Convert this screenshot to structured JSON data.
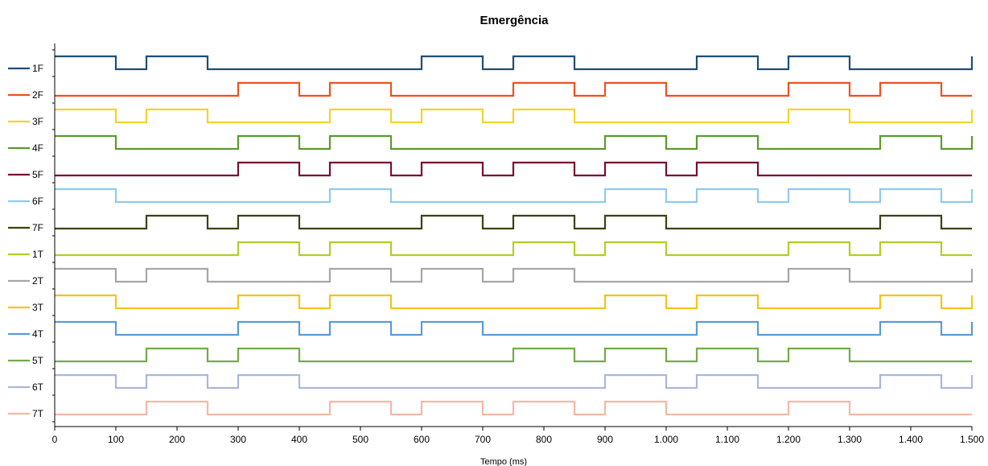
{
  "chart_data": {
    "type": "line",
    "title": "Emergência",
    "xlabel": "Tempo (ms)",
    "ylabel": "",
    "xlim": [
      0,
      1500
    ],
    "x_ticks": [
      0,
      100,
      200,
      300,
      400,
      500,
      600,
      700,
      800,
      900,
      1000,
      1100,
      1200,
      1300,
      1400,
      1500
    ],
    "x_tick_labels": [
      "0",
      "100",
      "200",
      "300",
      "400",
      "500",
      "600",
      "700",
      "800",
      "900",
      "1.000",
      "1.100",
      "1.200",
      "1.300",
      "1.400",
      "1.500"
    ],
    "grid": false,
    "legend_position": "left",
    "series": [
      {
        "name": "1F",
        "color": "#1F4E79",
        "x": [
          0,
          100,
          150,
          250,
          600,
          700,
          750,
          850,
          1050,
          1150,
          1200,
          1300,
          1500
        ],
        "values": [
          1,
          0,
          1,
          0,
          1,
          0,
          1,
          0,
          1,
          0,
          1,
          0,
          1
        ]
      },
      {
        "name": "2F",
        "color": "#F0501E",
        "x": [
          0,
          300,
          400,
          450,
          550,
          750,
          850,
          900,
          1000,
          1200,
          1300,
          1350,
          1450,
          1500
        ],
        "values": [
          0,
          1,
          0,
          1,
          0,
          1,
          0,
          1,
          0,
          1,
          0,
          1,
          0,
          0
        ]
      },
      {
        "name": "3F",
        "color": "#F5D327",
        "x": [
          0,
          100,
          150,
          250,
          450,
          550,
          600,
          700,
          750,
          850,
          1200,
          1300,
          1500
        ],
        "values": [
          1,
          0,
          1,
          0,
          1,
          0,
          1,
          0,
          1,
          0,
          1,
          0,
          1
        ]
      },
      {
        "name": "4F",
        "color": "#5A9C2A",
        "x": [
          0,
          100,
          300,
          400,
          450,
          550,
          900,
          1000,
          1050,
          1150,
          1350,
          1450,
          1500
        ],
        "values": [
          1,
          0,
          1,
          0,
          1,
          0,
          1,
          0,
          1,
          0,
          1,
          0,
          1
        ]
      },
      {
        "name": "5F",
        "color": "#7A0C32",
        "x": [
          0,
          300,
          400,
          450,
          550,
          600,
          700,
          750,
          850,
          900,
          1000,
          1050,
          1150,
          1500
        ],
        "values": [
          0,
          1,
          0,
          1,
          0,
          1,
          0,
          1,
          0,
          1,
          0,
          1,
          0,
          0
        ]
      },
      {
        "name": "6F",
        "color": "#8DCBF0",
        "x": [
          0,
          100,
          450,
          550,
          900,
          1000,
          1050,
          1150,
          1200,
          1300,
          1350,
          1450,
          1500
        ],
        "values": [
          1,
          0,
          1,
          0,
          1,
          0,
          1,
          0,
          1,
          0,
          1,
          0,
          1
        ]
      },
      {
        "name": "7F",
        "color": "#3B4311",
        "x": [
          0,
          150,
          250,
          300,
          400,
          600,
          700,
          750,
          850,
          900,
          1000,
          1350,
          1450,
          1500
        ],
        "values": [
          0,
          1,
          0,
          1,
          0,
          1,
          0,
          1,
          0,
          1,
          0,
          1,
          0,
          0
        ]
      },
      {
        "name": "1T",
        "color": "#B5CC26",
        "x": [
          0,
          300,
          400,
          450,
          550,
          750,
          850,
          900,
          1000,
          1200,
          1300,
          1350,
          1450,
          1500
        ],
        "values": [
          0,
          1,
          0,
          1,
          0,
          1,
          0,
          1,
          0,
          1,
          0,
          1,
          0,
          0
        ]
      },
      {
        "name": "2T",
        "color": "#A6A6A6",
        "x": [
          0,
          100,
          150,
          250,
          450,
          550,
          600,
          700,
          750,
          850,
          1200,
          1300,
          1500
        ],
        "values": [
          1,
          0,
          1,
          0,
          1,
          0,
          1,
          0,
          1,
          0,
          1,
          0,
          1
        ]
      },
      {
        "name": "3T",
        "color": "#F8C218",
        "x": [
          0,
          100,
          300,
          400,
          450,
          550,
          900,
          1000,
          1050,
          1150,
          1350,
          1450,
          1500
        ],
        "values": [
          1,
          0,
          1,
          0,
          1,
          0,
          1,
          0,
          1,
          0,
          1,
          0,
          1
        ]
      },
      {
        "name": "4T",
        "color": "#5B9BD5",
        "x": [
          0,
          100,
          300,
          400,
          450,
          550,
          600,
          700,
          1050,
          1150,
          1350,
          1450,
          1500
        ],
        "values": [
          1,
          0,
          1,
          0,
          1,
          0,
          1,
          0,
          1,
          0,
          1,
          0,
          1
        ]
      },
      {
        "name": "5T",
        "color": "#70AD47",
        "x": [
          0,
          150,
          250,
          300,
          400,
          750,
          850,
          900,
          1000,
          1050,
          1150,
          1200,
          1300,
          1500
        ],
        "values": [
          0,
          1,
          0,
          1,
          0,
          1,
          0,
          1,
          0,
          1,
          0,
          1,
          0,
          0
        ]
      },
      {
        "name": "6T",
        "color": "#A9B6E0",
        "x": [
          0,
          100,
          150,
          250,
          300,
          400,
          900,
          1000,
          1050,
          1150,
          1350,
          1450,
          1500
        ],
        "values": [
          1,
          0,
          1,
          0,
          1,
          0,
          1,
          0,
          1,
          0,
          1,
          0,
          1
        ]
      },
      {
        "name": "7T",
        "color": "#F4B8A4",
        "x": [
          0,
          150,
          250,
          450,
          550,
          600,
          700,
          750,
          850,
          900,
          1000,
          1200,
          1300,
          1500
        ],
        "values": [
          0,
          1,
          0,
          1,
          0,
          1,
          0,
          1,
          0,
          1,
          0,
          1,
          0,
          0
        ]
      }
    ]
  }
}
